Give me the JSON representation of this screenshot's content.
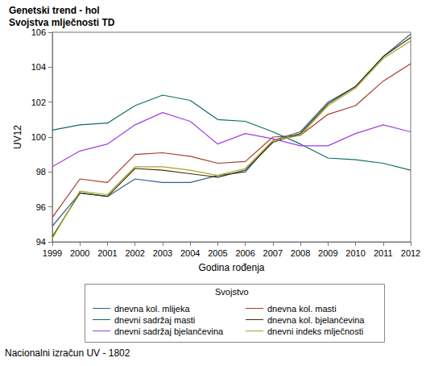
{
  "chart_data": {
    "type": "line",
    "title": "Genetski trend - hol",
    "subtitle": "Svojstva mlječnosti TD",
    "x_label": "Godina rođenja",
    "y_label": "UV12",
    "legend_title": "Svojstvo",
    "annotations": [
      "Nacionalni izračun UV - 1802"
    ],
    "categories": [
      "1999",
      "2000",
      "2001",
      "2002",
      "2003",
      "2004",
      "2005",
      "2006",
      "2007",
      "2008",
      "2009",
      "2010",
      "2011",
      "2012"
    ],
    "ylim": [
      94,
      106
    ],
    "yticks": [
      94,
      96,
      98,
      100,
      102,
      104,
      106
    ],
    "grid": false,
    "legend": "bottom",
    "series": [
      {
        "name": "dnevna kol. mlijeka",
        "color": "#2f5f8f",
        "values": [
          94.9,
          96.8,
          96.6,
          97.6,
          97.4,
          97.4,
          97.8,
          98.0,
          99.8,
          100.3,
          102.0,
          102.9,
          104.6,
          105.9
        ]
      },
      {
        "name": "dnevna kol. masti",
        "color": "#a83a2c",
        "values": [
          95.4,
          97.6,
          97.4,
          99.0,
          99.1,
          98.9,
          98.5,
          98.6,
          100.0,
          100.1,
          101.3,
          101.8,
          103.2,
          104.2
        ]
      },
      {
        "name": "dnevni sadržaj masti",
        "color": "#0f6b66",
        "values": [
          100.4,
          100.7,
          100.8,
          101.8,
          102.4,
          102.1,
          101.0,
          100.9,
          100.3,
          99.6,
          98.8,
          98.7,
          98.5,
          98.1
        ]
      },
      {
        "name": "dnevna kol. bjelančevina",
        "color": "#3d3300",
        "values": [
          94.3,
          96.8,
          96.6,
          98.2,
          98.1,
          97.9,
          97.7,
          98.1,
          99.7,
          100.2,
          101.9,
          102.9,
          104.6,
          105.7
        ]
      },
      {
        "name": "dnevni sadržaj bjelančevina",
        "color": "#a040e0",
        "values": [
          98.3,
          99.2,
          99.6,
          100.7,
          101.4,
          100.9,
          99.6,
          100.2,
          99.9,
          99.5,
          99.5,
          100.2,
          100.7,
          100.3
        ]
      },
      {
        "name": "dnevni indeks mlječnosti",
        "color": "#a3a32a",
        "values": [
          94.2,
          96.9,
          96.7,
          98.3,
          98.3,
          98.1,
          97.8,
          98.2,
          99.8,
          100.1,
          101.8,
          102.8,
          104.5,
          105.5
        ]
      }
    ]
  }
}
